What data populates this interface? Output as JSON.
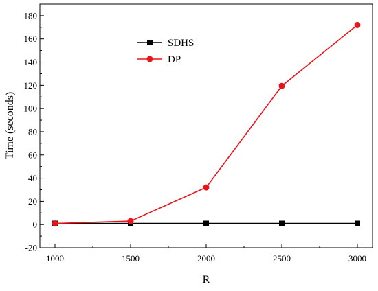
{
  "chart_data": {
    "type": "line",
    "title": "",
    "xlabel": "R",
    "ylabel": "Time (seconds)",
    "x": [
      1000,
      1500,
      2000,
      2500,
      3000
    ],
    "xlim": [
      900,
      3100
    ],
    "ylim": [
      -20,
      190
    ],
    "xticks": [
      1000,
      1500,
      2000,
      2500,
      3000
    ],
    "yticks": [
      -20,
      0,
      20,
      40,
      60,
      80,
      100,
      120,
      140,
      160,
      180
    ],
    "grid": false,
    "legend_position": "top-left-center",
    "series": [
      {
        "name": "SDHS",
        "values": [
          1,
          1,
          1,
          1,
          1
        ],
        "color": "#000000",
        "marker": "square"
      },
      {
        "name": "DP",
        "values": [
          1,
          3,
          32,
          119.5,
          172
        ],
        "color": "#e8141c",
        "marker": "circle"
      }
    ]
  }
}
